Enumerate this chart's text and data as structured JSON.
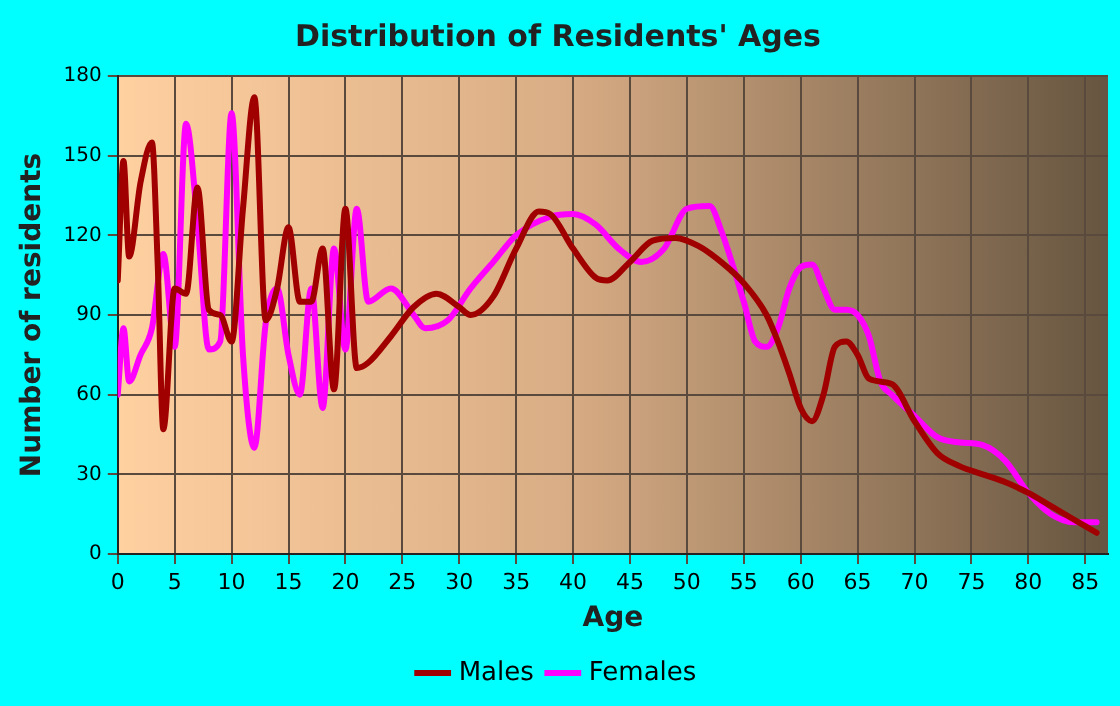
{
  "chart_data": {
    "type": "line",
    "title": "Distribution of Residents' Ages",
    "xlabel": "Age",
    "ylabel": "Number of residents",
    "xlim": [
      0,
      87
    ],
    "xticks": [
      0,
      5,
      10,
      15,
      20,
      25,
      30,
      35,
      40,
      45,
      50,
      55,
      60,
      65,
      70,
      75,
      80,
      85
    ],
    "ylim": [
      0,
      180
    ],
    "yticks": [
      0,
      30,
      60,
      90,
      120,
      150,
      180
    ],
    "grid": true,
    "legend": "bottom",
    "marker": "none",
    "line_style": "solid",
    "series": [
      {
        "name": "Males",
        "color": "#a00000",
        "x": [
          0,
          0.5,
          1,
          2,
          3,
          3.5,
          4,
          5,
          6,
          7,
          8,
          9,
          10,
          11,
          12,
          13,
          14,
          15,
          16,
          17,
          18,
          19,
          20,
          21,
          22,
          24,
          26,
          28,
          30,
          31,
          33,
          35,
          37,
          38,
          40,
          42,
          43,
          45,
          47,
          49,
          51,
          53,
          55,
          57,
          58,
          59,
          60,
          61,
          62,
          63,
          64,
          65,
          66,
          68,
          70,
          72,
          74,
          76,
          78,
          80,
          82,
          84,
          86
        ],
        "values": [
          103,
          148,
          112,
          140,
          155,
          110,
          47,
          100,
          98,
          138,
          92,
          90,
          80,
          130,
          172,
          88,
          100,
          123,
          95,
          95,
          115,
          62,
          130,
          70,
          72,
          82,
          93,
          98,
          93,
          90,
          97,
          115,
          129,
          128,
          115,
          104,
          103,
          110,
          118,
          119,
          116,
          110,
          102,
          90,
          80,
          68,
          55,
          50,
          60,
          78,
          80,
          75,
          66,
          64,
          50,
          38,
          33,
          30,
          27,
          23,
          18,
          13,
          8
        ]
      },
      {
        "name": "Females",
        "color": "#ff00ff",
        "x": [
          0,
          0.5,
          1,
          2,
          3,
          4,
          5,
          6,
          7,
          8,
          9,
          10,
          11,
          12,
          13,
          14,
          15,
          16,
          17,
          18,
          19,
          20,
          21,
          22,
          24,
          26,
          27,
          29,
          31,
          33,
          35,
          38,
          40,
          42,
          44,
          46,
          48,
          50,
          52,
          53,
          55,
          56,
          57,
          58,
          59,
          60,
          61,
          62,
          63,
          64,
          65,
          66,
          67,
          68,
          70,
          72,
          74,
          76,
          78,
          80,
          82,
          84,
          86
        ],
        "values": [
          60,
          85,
          65,
          75,
          85,
          113,
          78,
          162,
          125,
          77,
          80,
          166,
          75,
          40,
          87,
          100,
          75,
          60,
          100,
          55,
          115,
          77,
          130,
          95,
          100,
          90,
          85,
          88,
          100,
          110,
          120,
          127,
          128,
          124,
          115,
          110,
          115,
          130,
          131,
          122,
          95,
          80,
          78,
          85,
          100,
          108,
          109,
          100,
          92,
          92,
          90,
          82,
          65,
          60,
          52,
          44,
          42,
          41,
          35,
          23,
          15,
          12,
          12
        ]
      }
    ]
  }
}
